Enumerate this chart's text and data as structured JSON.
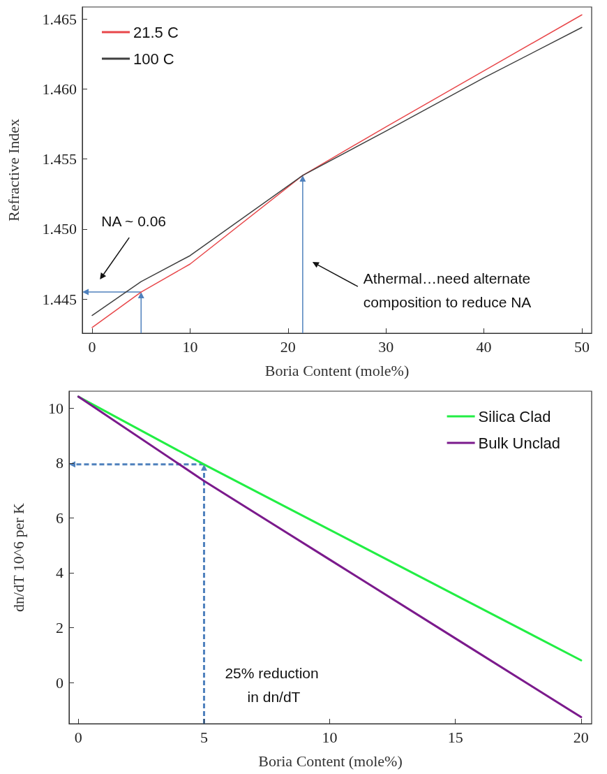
{
  "chart_data": [
    {
      "type": "line",
      "xlabel": "Boria Content (mole%)",
      "ylabel": "Refractive Index",
      "x": [
        0,
        5,
        10,
        21.5,
        30,
        40,
        50
      ],
      "series": [
        {
          "name": "21.5 C",
          "color": "#e8474a",
          "values": [
            1.44297,
            1.4455,
            1.4475,
            1.45383,
            1.4573,
            1.4613,
            1.4653
          ]
        },
        {
          "name": "100 C",
          "color": "#404040",
          "values": [
            1.44383,
            1.44625,
            1.4481,
            1.45383,
            1.457,
            1.4608,
            1.4644
          ]
        }
      ],
      "xlim": [
        -1,
        51
      ],
      "ylim": [
        1.44256,
        1.46586
      ],
      "xticks": [
        0,
        10,
        20,
        30,
        40,
        50
      ],
      "yticks": [
        1.445,
        {
          "value": 1.46,
          "label": "1.460"
        },
        1.455,
        {
          "value": 1.45,
          "label": "1.450"
        },
        1.465
      ],
      "annotations": [
        "NA ~ 0.06",
        "Athermal…need alternate composition to reduce NA"
      ],
      "legend": "top left",
      "marker": "none",
      "line_style": "solid",
      "grid": false
    },
    {
      "type": "line",
      "xlabel": "Boria Content (mole%)",
      "ylabel": "dn/dT 10^6 per K",
      "x": [
        0,
        5,
        10,
        15,
        20
      ],
      "series": [
        {
          "name": "Silica Clad",
          "color": "#22ee44",
          "values": [
            10.42,
            7.95,
            5.57,
            3.19,
            0.81
          ]
        },
        {
          "name": "Bulk Unclad",
          "color": "#7b1a8c",
          "values": [
            10.42,
            7.35,
            4.48,
            1.61,
            -1.26
          ]
        }
      ],
      "xlim": [
        -0.37,
        20.42
      ],
      "ylim": [
        -1.5,
        10.62
      ],
      "xticks": [
        0,
        5,
        10,
        15,
        20
      ],
      "yticks": [
        0,
        2,
        4,
        6,
        8,
        10
      ],
      "annotations": [
        "25% reduction in dn/dT"
      ],
      "legend": "top right",
      "marker": "none",
      "line_style": "solid",
      "grid": false
    }
  ]
}
